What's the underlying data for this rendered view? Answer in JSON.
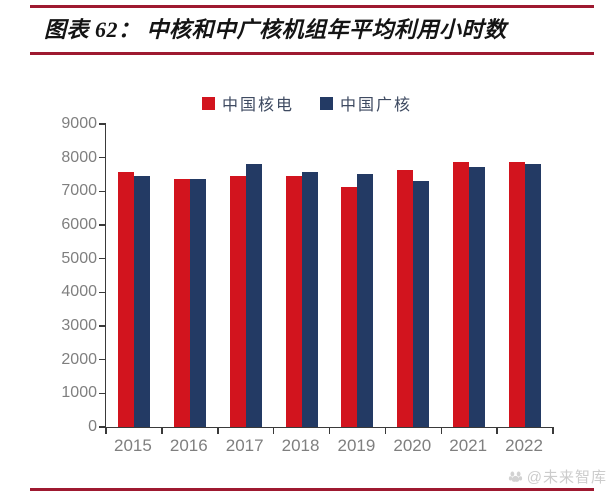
{
  "header": {
    "figure_title": "图表 62： 中核和中广核机组年平均利用小时数"
  },
  "legend": {
    "items": [
      "中国核电",
      "中国广核"
    ]
  },
  "watermark": {
    "icon": "baijiahao-logo-icon",
    "text": "@未来智库"
  },
  "colors": {
    "rule": "#9E1930",
    "bar_red": "#D2141E",
    "bar_navy": "#233A64",
    "axis_text": "#7f7f7f",
    "legend_text": "#3E4A61",
    "watermark_text": "#cccccc"
  },
  "chart_data": {
    "type": "bar",
    "title": "中核和中广核机组年平均利用小时数",
    "categories": [
      "2015",
      "2016",
      "2017",
      "2018",
      "2019",
      "2020",
      "2021",
      "2022"
    ],
    "series": [
      {
        "name": "中国核电",
        "color": "#D2141E",
        "values": [
          7580,
          7360,
          7450,
          7450,
          7140,
          7630,
          7870,
          7880
        ]
      },
      {
        "name": "中国广核",
        "color": "#233A64",
        "values": [
          7450,
          7370,
          7810,
          7560,
          7510,
          7300,
          7720,
          7800
        ]
      }
    ],
    "xlabel": "",
    "ylabel": "",
    "ylim": [
      0,
      9000
    ],
    "y_ticks": [
      0,
      1000,
      2000,
      3000,
      4000,
      5000,
      6000,
      7000,
      8000,
      9000
    ],
    "grid": false,
    "legend_position": "top-center"
  }
}
